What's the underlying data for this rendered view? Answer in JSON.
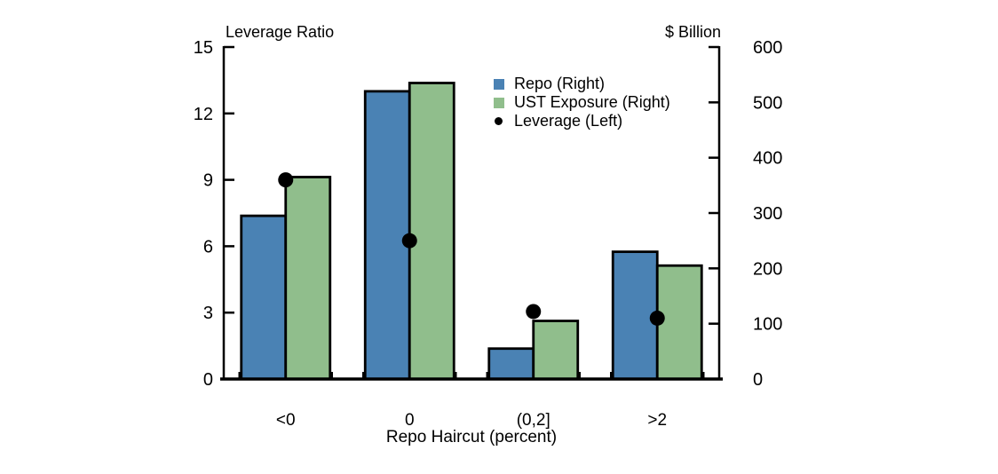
{
  "colors": {
    "repo": "#4A82B4",
    "ust": "#90BE8C",
    "leverage": "#000000",
    "axis": "#000000",
    "background": "#FFFFFF"
  },
  "chart_data": {
    "type": "bar",
    "title_left_axis": "Leverage Ratio",
    "title_right_axis": "$ Billion",
    "xlabel": "Repo Haircut (percent)",
    "categories": [
      "<0",
      "0",
      "(0,2]",
      ">2"
    ],
    "series": [
      {
        "name": "Repo (Right)",
        "axis": "right",
        "kind": "bar",
        "color_key": "repo",
        "values": [
          295,
          520,
          55,
          230
        ]
      },
      {
        "name": "UST Exposure (Right)",
        "axis": "right",
        "kind": "bar",
        "color_key": "ust",
        "values": [
          365,
          535,
          105,
          205
        ]
      },
      {
        "name": "Leverage (Left)",
        "axis": "left",
        "kind": "point",
        "color_key": "leverage",
        "values": [
          9.0,
          6.25,
          3.05,
          2.75
        ]
      }
    ],
    "left_axis": {
      "label": "Leverage Ratio",
      "min": 0,
      "max": 15,
      "ticks": [
        0,
        3,
        6,
        9,
        12,
        15
      ]
    },
    "right_axis": {
      "label": "$ Billion",
      "min": 0,
      "max": 600,
      "ticks": [
        0,
        100,
        200,
        300,
        400,
        500,
        600
      ]
    },
    "legend_position": "inside-top-right",
    "grid": false
  }
}
